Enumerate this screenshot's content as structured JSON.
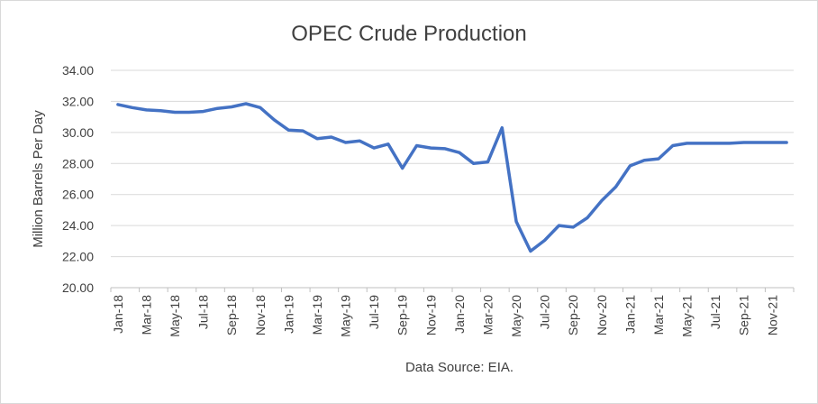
{
  "chart_data": {
    "type": "line",
    "title": "OPEC Crude  Production",
    "xlabel": "Data Source: EIA.",
    "ylabel": "Million Barrels Per Day",
    "ylim": [
      20.0,
      34.0
    ],
    "y_ticks": [
      "20.00",
      "22.00",
      "24.00",
      "26.00",
      "28.00",
      "30.00",
      "32.00",
      "34.00"
    ],
    "y_tick_values": [
      20,
      22,
      24,
      26,
      28,
      30,
      32,
      34
    ],
    "x": [
      "Jan-18",
      "Feb-18",
      "Mar-18",
      "Apr-18",
      "May-18",
      "Jun-18",
      "Jul-18",
      "Aug-18",
      "Sep-18",
      "Oct-18",
      "Nov-18",
      "Dec-18",
      "Jan-19",
      "Feb-19",
      "Mar-19",
      "Apr-19",
      "May-19",
      "Jun-19",
      "Jul-19",
      "Aug-19",
      "Sep-19",
      "Oct-19",
      "Nov-19",
      "Dec-19",
      "Jan-20",
      "Feb-20",
      "Mar-20",
      "Apr-20",
      "May-20",
      "Jun-20",
      "Jul-20",
      "Aug-20",
      "Sep-20",
      "Oct-20",
      "Nov-20",
      "Dec-20",
      "Jan-21",
      "Feb-21",
      "Mar-21",
      "Apr-21",
      "May-21",
      "Jun-21",
      "Jul-21",
      "Aug-21",
      "Sep-21",
      "Oct-21",
      "Nov-21",
      "Dec-21"
    ],
    "x_tick_labels": [
      "Jan-18",
      "Mar-18",
      "May-18",
      "Jul-18",
      "Sep-18",
      "Nov-18",
      "Jan-19",
      "Mar-19",
      "May-19",
      "Jul-19",
      "Sep-19",
      "Nov-19",
      "Jan-20",
      "Mar-20",
      "May-20",
      "Jul-20",
      "Sep-20",
      "Nov-20",
      "Jan-21",
      "Mar-21",
      "May-21",
      "Jul-21",
      "Sep-21",
      "Nov-21"
    ],
    "series": [
      {
        "color": "#4472c4",
        "values": [
          31.8,
          31.6,
          31.45,
          31.4,
          31.3,
          31.3,
          31.35,
          31.55,
          31.65,
          31.85,
          31.6,
          30.8,
          30.15,
          30.1,
          29.6,
          29.7,
          29.35,
          29.45,
          29.0,
          29.25,
          27.7,
          29.15,
          29.0,
          28.95,
          28.7,
          28.0,
          28.1,
          30.3,
          24.25,
          22.35,
          23.05,
          24.0,
          23.9,
          24.5,
          25.6,
          26.5,
          27.85,
          28.2,
          28.3,
          29.15,
          29.3,
          29.3,
          29.3,
          29.3,
          29.35,
          29.35,
          29.35,
          29.35
        ]
      }
    ],
    "grid": true
  }
}
